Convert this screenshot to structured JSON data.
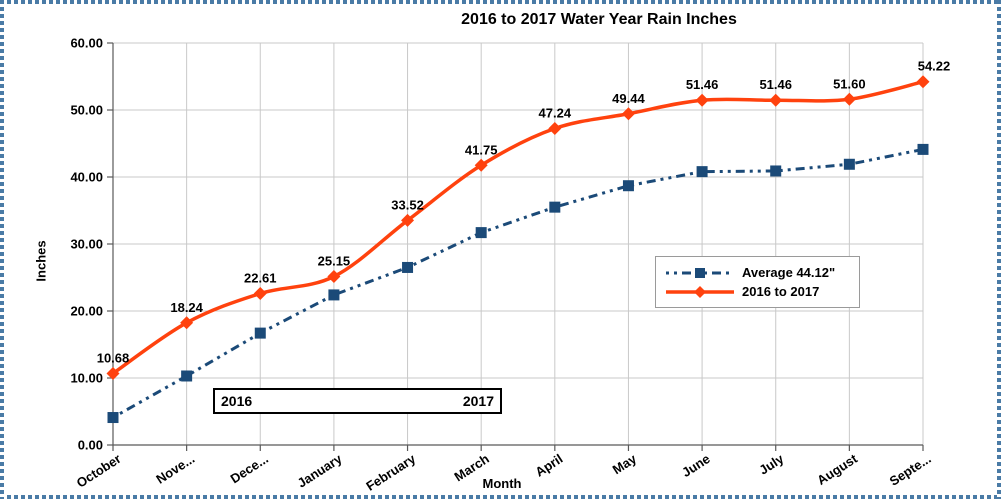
{
  "chart_data": {
    "type": "line",
    "title": "2016 to 2017 Water Year Rain Inches",
    "xlabel": "Month",
    "ylabel": "Inches",
    "ylim": [
      0,
      60
    ],
    "y_tick_step": 10,
    "y_tick_labels": [
      "0.00",
      "10.00",
      "20.00",
      "30.00",
      "40.00",
      "50.00",
      "60.00"
    ],
    "grid": true,
    "legend_position": "middle-right",
    "categories": [
      "October",
      "November",
      "December",
      "January",
      "February",
      "March",
      "April",
      "May",
      "June",
      "July",
      "August",
      "September"
    ],
    "category_labels_shown": [
      "October",
      "Nove...",
      "Dece...",
      "January",
      "February",
      "March",
      "April",
      "May",
      "June",
      "July",
      "August",
      "Septe..."
    ],
    "series": [
      {
        "name": "Average 44.12\"",
        "values": [
          4.1,
          10.3,
          16.7,
          22.4,
          26.5,
          31.7,
          35.5,
          38.7,
          40.8,
          40.9,
          41.9,
          44.12
        ],
        "color": "#1b4a78",
        "line_style": "dash-dot",
        "marker": "square",
        "data_labels_shown": false
      },
      {
        "name": "2016 to 2017",
        "values": [
          10.68,
          18.24,
          22.61,
          25.15,
          33.52,
          41.75,
          47.24,
          49.44,
          51.46,
          51.46,
          51.6,
          54.22
        ],
        "color": "#ff420e",
        "line_style": "solid-smooth",
        "marker": "diamond",
        "data_labels_shown": true,
        "label_texts": [
          "10.68",
          "18.24",
          "22.61",
          "25.15",
          "33.52",
          "41.75",
          "47.24",
          "49.44",
          "51.46",
          "51.46",
          "51.60",
          "54.22"
        ]
      }
    ],
    "annotations": {
      "year_left": "2016",
      "year_right": "2017"
    }
  },
  "colors": {
    "selection_border": "#4a7ba6",
    "gridline": "#c9c9c9",
    "axis_line": "#595959",
    "text": "#000000",
    "legend_border": "#9a9a9a",
    "year_box_border": "#000000"
  }
}
